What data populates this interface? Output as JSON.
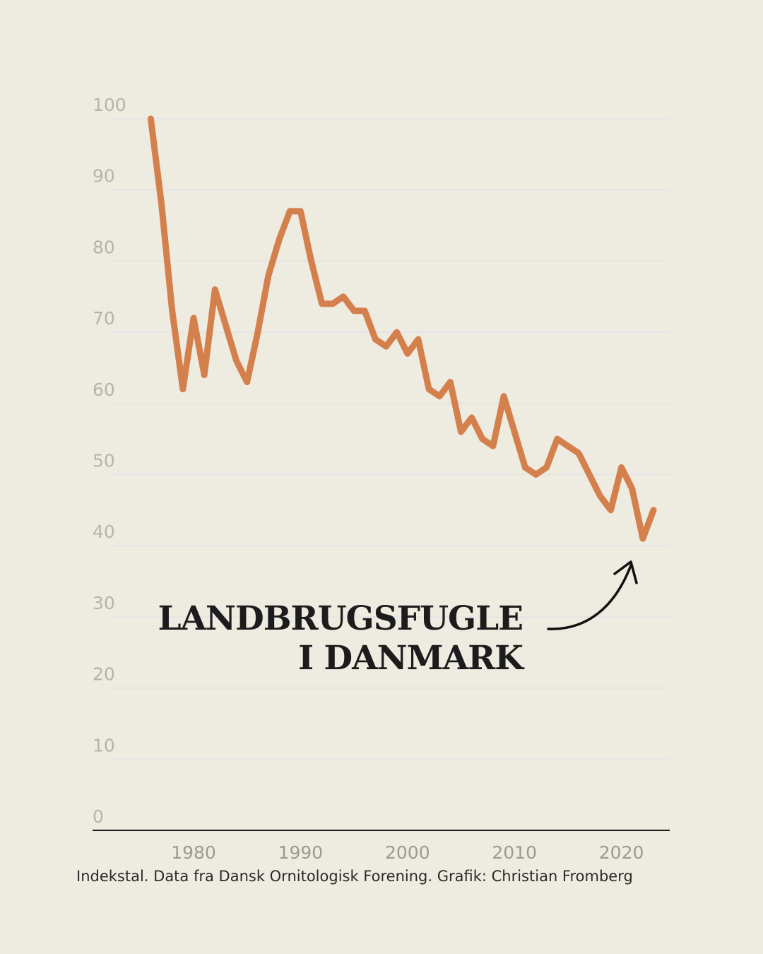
{
  "colors": {
    "background": "#eeebe1",
    "line": "#d4804c",
    "grid": "#e6e4e6",
    "axis": "#1c1c1c"
  },
  "chart_data": {
    "type": "line",
    "title_lines": [
      "LANDBRUGSFUGLE",
      "I DANMARK"
    ],
    "caption": "Indekstal. Data fra Dansk Ornitologisk Forening. Grafik: Christian Fromberg",
    "xlabel": "",
    "ylabel": "",
    "ylim": [
      0,
      100
    ],
    "xlim": [
      1972,
      2025
    ],
    "yticks": [
      0,
      10,
      20,
      30,
      40,
      50,
      60,
      70,
      80,
      90,
      100
    ],
    "xticks": [
      1980,
      1990,
      2000,
      2010,
      2020
    ],
    "grid": true,
    "series": [
      {
        "name": "Landbrugsfugle",
        "x": [
          1976,
          1977,
          1978,
          1979,
          1980,
          1981,
          1982,
          1983,
          1984,
          1985,
          1986,
          1987,
          1988,
          1989,
          1990,
          1991,
          1992,
          1993,
          1994,
          1995,
          1996,
          1997,
          1998,
          1999,
          2000,
          2001,
          2002,
          2003,
          2004,
          2005,
          2006,
          2007,
          2008,
          2009,
          2010,
          2011,
          2012,
          2013,
          2014,
          2015,
          2016,
          2017,
          2018,
          2019,
          2020,
          2021,
          2022,
          2023
        ],
        "values": [
          100,
          88,
          73,
          62,
          72,
          64,
          76,
          71,
          66,
          63,
          70,
          78,
          83,
          87,
          87,
          80,
          74,
          74,
          75,
          73,
          73,
          69,
          68,
          70,
          67,
          69,
          62,
          61,
          63,
          56,
          58,
          55,
          54,
          61,
          56,
          51,
          50,
          51,
          55,
          54,
          53,
          50,
          47,
          45,
          51,
          48,
          41,
          45
        ]
      }
    ]
  }
}
